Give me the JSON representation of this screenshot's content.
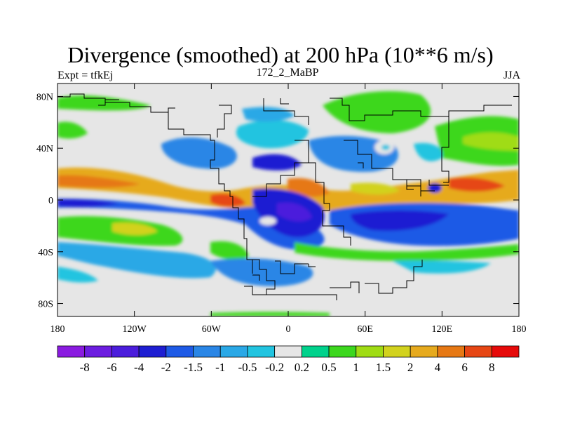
{
  "title": "Divergence (smoothed) at 200 hPa (10**6 m/s)",
  "subtitle_left": "Expt = tfkEj",
  "subtitle_center": "172_2_MaBP",
  "subtitle_right": "JJA",
  "chart_data": {
    "type": "heatmap",
    "map_projection": "cylindrical-equidistant",
    "xlim": [
      -180,
      180
    ],
    "ylim": [
      -90,
      90
    ],
    "x_ticks": [
      {
        "value": -180,
        "label": "180"
      },
      {
        "value": -120,
        "label": "120W"
      },
      {
        "value": -60,
        "label": "60W"
      },
      {
        "value": 0,
        "label": "0"
      },
      {
        "value": 60,
        "label": "60E"
      },
      {
        "value": 120,
        "label": "120E"
      },
      {
        "value": 180,
        "label": "180"
      }
    ],
    "y_ticks": [
      {
        "value": 80,
        "label": "80N"
      },
      {
        "value": 40,
        "label": "40N"
      },
      {
        "value": 0,
        "label": "0"
      },
      {
        "value": -40,
        "label": "40S"
      },
      {
        "value": -80,
        "label": "80S"
      }
    ],
    "colorbar": {
      "colors": [
        "#8a1be0",
        "#6c1de0",
        "#4b1ddc",
        "#1e1ed2",
        "#1e5ae6",
        "#2a86e6",
        "#2aa8e6",
        "#22c4e0",
        "#e6e6e6",
        "#00d28c",
        "#3cd71e",
        "#a0dc14",
        "#d2d21e",
        "#e6aa1e",
        "#e67814",
        "#e64614",
        "#e60a0a"
      ],
      "labels": [
        "-8",
        "-6",
        "-4",
        "-2",
        "-1.5",
        "-1",
        "-0.5",
        "-0.2",
        "0.2",
        "0.5",
        "1",
        "1.5",
        "2",
        "4",
        "6",
        "8"
      ]
    }
  }
}
